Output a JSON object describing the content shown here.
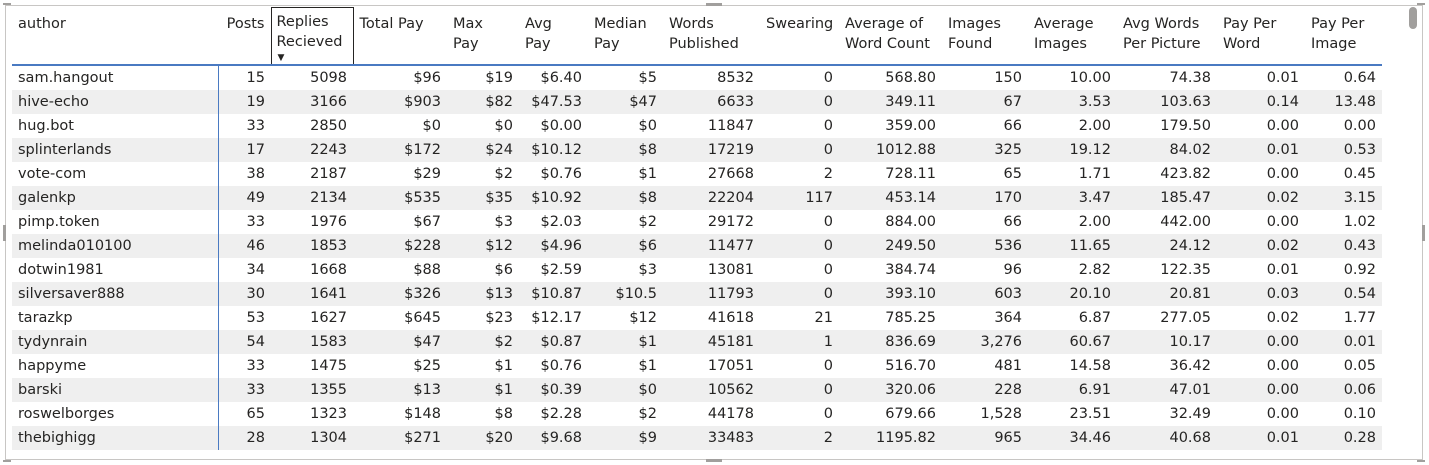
{
  "table": {
    "columns": [
      {
        "key": "author",
        "label": "author"
      },
      {
        "key": "posts",
        "label": "Posts"
      },
      {
        "key": "replies",
        "label": "Replies Recieved"
      },
      {
        "key": "total_pay",
        "label": "Total Pay"
      },
      {
        "key": "max_pay",
        "label": "Max Pay"
      },
      {
        "key": "avg_pay",
        "label": "Avg Pay"
      },
      {
        "key": "median_pay",
        "label": "Median Pay"
      },
      {
        "key": "words",
        "label": "Words Published"
      },
      {
        "key": "swearing",
        "label": "Swearing"
      },
      {
        "key": "avg_word_count",
        "label": "Average of Word Count"
      },
      {
        "key": "images_found",
        "label": "Images Found"
      },
      {
        "key": "avg_images",
        "label": "Average Images"
      },
      {
        "key": "avg_words_per_picture",
        "label": "Avg Words Per Picture"
      },
      {
        "key": "pay_per_word",
        "label": "Pay Per Word"
      },
      {
        "key": "pay_per_image",
        "label": "Pay Per Image"
      }
    ],
    "sorted_column": "replies",
    "sort_direction": "descending",
    "rows": [
      [
        "sam.hangout",
        "15",
        "5098",
        "$96",
        "$19",
        "$6.40",
        "$5",
        "8532",
        "0",
        "568.80",
        "150",
        "10.00",
        "74.38",
        "0.01",
        "0.64"
      ],
      [
        "hive-echo",
        "19",
        "3166",
        "$903",
        "$82",
        "$47.53",
        "$47",
        "6633",
        "0",
        "349.11",
        "67",
        "3.53",
        "103.63",
        "0.14",
        "13.48"
      ],
      [
        "hug.bot",
        "33",
        "2850",
        "$0",
        "$0",
        "$0.00",
        "$0",
        "11847",
        "0",
        "359.00",
        "66",
        "2.00",
        "179.50",
        "0.00",
        "0.00"
      ],
      [
        "splinterlands",
        "17",
        "2243",
        "$172",
        "$24",
        "$10.12",
        "$8",
        "17219",
        "0",
        "1012.88",
        "325",
        "19.12",
        "84.02",
        "0.01",
        "0.53"
      ],
      [
        "vote-com",
        "38",
        "2187",
        "$29",
        "$2",
        "$0.76",
        "$1",
        "27668",
        "2",
        "728.11",
        "65",
        "1.71",
        "423.82",
        "0.00",
        "0.45"
      ],
      [
        "galenkp",
        "49",
        "2134",
        "$535",
        "$35",
        "$10.92",
        "$8",
        "22204",
        "117",
        "453.14",
        "170",
        "3.47",
        "185.47",
        "0.02",
        "3.15"
      ],
      [
        "pimp.token",
        "33",
        "1976",
        "$67",
        "$3",
        "$2.03",
        "$2",
        "29172",
        "0",
        "884.00",
        "66",
        "2.00",
        "442.00",
        "0.00",
        "1.02"
      ],
      [
        "melinda010100",
        "46",
        "1853",
        "$228",
        "$12",
        "$4.96",
        "$6",
        "11477",
        "0",
        "249.50",
        "536",
        "11.65",
        "24.12",
        "0.02",
        "0.43"
      ],
      [
        "dotwin1981",
        "34",
        "1668",
        "$88",
        "$6",
        "$2.59",
        "$3",
        "13081",
        "0",
        "384.74",
        "96",
        "2.82",
        "122.35",
        "0.01",
        "0.92"
      ],
      [
        "silversaver888",
        "30",
        "1641",
        "$326",
        "$13",
        "$10.87",
        "$10.5",
        "11793",
        "0",
        "393.10",
        "603",
        "20.10",
        "20.81",
        "0.03",
        "0.54"
      ],
      [
        "tarazkp",
        "53",
        "1627",
        "$645",
        "$23",
        "$12.17",
        "$12",
        "41618",
        "21",
        "785.25",
        "364",
        "6.87",
        "277.05",
        "0.02",
        "1.77"
      ],
      [
        "tydynrain",
        "54",
        "1583",
        "$47",
        "$2",
        "$0.87",
        "$1",
        "45181",
        "1",
        "836.69",
        "3,276",
        "60.67",
        "10.17",
        "0.00",
        "0.01"
      ],
      [
        "happyme",
        "33",
        "1475",
        "$25",
        "$1",
        "$0.76",
        "$1",
        "17051",
        "0",
        "516.70",
        "481",
        "14.58",
        "36.42",
        "0.00",
        "0.05"
      ],
      [
        "barski",
        "33",
        "1355",
        "$13",
        "$1",
        "$0.39",
        "$0",
        "10562",
        "0",
        "320.06",
        "228",
        "6.91",
        "47.01",
        "0.00",
        "0.06"
      ],
      [
        "roswelborges",
        "65",
        "1323",
        "$148",
        "$8",
        "$2.28",
        "$2",
        "44178",
        "0",
        "679.66",
        "1,528",
        "23.51",
        "32.49",
        "0.00",
        "0.10"
      ],
      [
        "thebighigg",
        "28",
        "1304",
        "$271",
        "$20",
        "$9.68",
        "$9",
        "33483",
        "2",
        "1195.82",
        "965",
        "34.46",
        "40.68",
        "0.01",
        "0.28"
      ]
    ]
  }
}
